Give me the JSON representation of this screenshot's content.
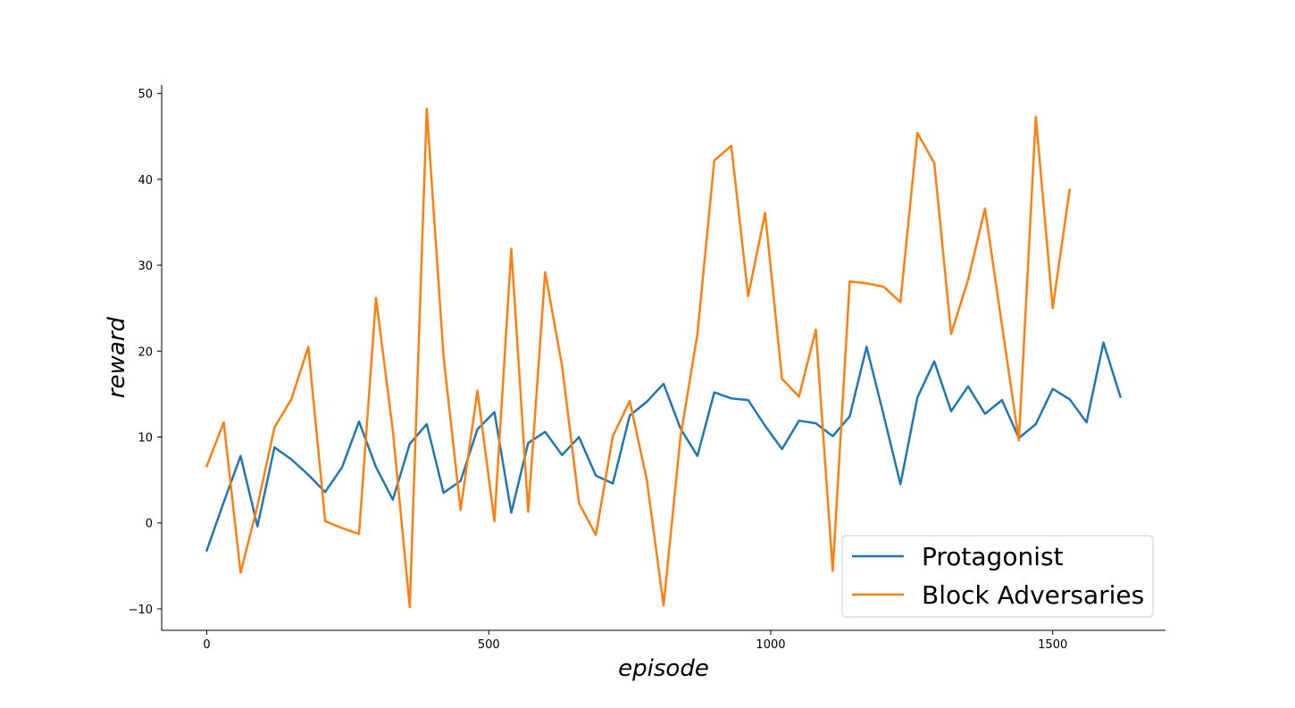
{
  "chart_data": {
    "type": "line",
    "xlabel": "episode",
    "ylabel": "reward",
    "xlim": [
      -80,
      1700
    ],
    "ylim": [
      -12.5,
      51
    ],
    "xticks": [
      0,
      500,
      1000,
      1500
    ],
    "yticks": [
      -10,
      0,
      10,
      20,
      30,
      40,
      50
    ],
    "legend_position": "lower-right",
    "grid": false,
    "series": [
      {
        "name": "Protagonist",
        "color": "#1f77b4",
        "x": [
          0,
          30,
          60,
          90,
          120,
          150,
          180,
          210,
          240,
          270,
          300,
          330,
          360,
          390,
          420,
          450,
          480,
          510,
          540,
          570,
          600,
          630,
          660,
          690,
          720,
          750,
          780,
          810,
          840,
          870,
          900,
          930,
          960,
          990,
          1020,
          1050,
          1080,
          1110,
          1140,
          1170,
          1200,
          1230,
          1260,
          1290,
          1320,
          1350,
          1380,
          1410,
          1440,
          1470,
          1500,
          1530,
          1560,
          1590,
          1620
        ],
        "y": [
          -3.2,
          2.4,
          7.8,
          -0.4,
          8.8,
          7.4,
          5.6,
          3.6,
          6.5,
          11.8,
          6.5,
          2.7,
          9.2,
          11.5,
          3.5,
          4.9,
          10.9,
          12.9,
          1.2,
          9.3,
          10.6,
          7.9,
          10.0,
          5.5,
          4.6,
          12.5,
          14.1,
          16.2,
          11.0,
          7.8,
          15.2,
          14.5,
          14.3,
          11.3,
          8.6,
          11.9,
          11.6,
          10.1,
          12.4,
          20.5,
          12.6,
          4.5,
          14.6,
          18.8,
          13.0,
          15.9,
          12.7,
          14.3,
          9.9,
          11.5,
          15.6,
          14.4,
          11.7,
          21.0,
          14.7
        ]
      },
      {
        "name": "Block Adversaries",
        "color": "#ff7f0e",
        "x": [
          0,
          30,
          60,
          90,
          120,
          150,
          180,
          210,
          240,
          270,
          300,
          330,
          360,
          390,
          420,
          450,
          480,
          510,
          540,
          570,
          600,
          630,
          660,
          690,
          720,
          750,
          780,
          810,
          840,
          870,
          900,
          930,
          960,
          990,
          1020,
          1050,
          1080,
          1110,
          1140,
          1170,
          1200,
          1230,
          1260,
          1290,
          1320,
          1350,
          1380,
          1410,
          1440,
          1470,
          1500,
          1530
        ],
        "y": [
          6.6,
          11.7,
          -5.8,
          2.0,
          11.1,
          14.4,
          20.5,
          0.2,
          -0.6,
          -1.3,
          26.2,
          10.7,
          -9.8,
          48.2,
          19.3,
          1.5,
          15.4,
          0.2,
          31.9,
          1.3,
          29.2,
          18.3,
          2.3,
          -1.4,
          10.1,
          14.2,
          5.1,
          -9.6,
          10.0,
          22.0,
          42.2,
          43.9,
          26.4,
          36.1,
          16.8,
          14.7,
          22.5,
          -5.6,
          28.1,
          27.9,
          27.5,
          25.7,
          45.4,
          41.9,
          22.0,
          28.3,
          36.6,
          23.0,
          9.6,
          47.3,
          25.0,
          38.8
        ]
      }
    ]
  }
}
